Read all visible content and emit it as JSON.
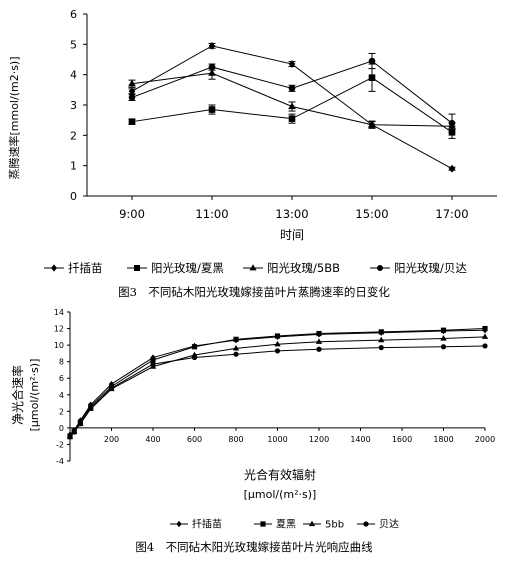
{
  "figure3": {
    "caption": "图3　不同砧木阳光玫瑰嫁接苗叶片蒸腾速率的日变化"
  },
  "figure4": {
    "caption": "图4　不同砧木阳光玫瑰嫁接苗叶片光响应曲线"
  },
  "chart_data": [
    {
      "type": "line",
      "xlabel": "时间",
      "ylabel": "蒸腾速率[mmol/(m2·s)]",
      "categories": [
        "9:00",
        "11:00",
        "13:00",
        "15:00",
        "17:00"
      ],
      "yticks": [
        0,
        1,
        2,
        3,
        4,
        5,
        6
      ],
      "ylim": [
        0,
        6
      ],
      "legend_placement": "bottom",
      "series": [
        {
          "name": "扦插苗",
          "marker": "diamond",
          "values": [
            3.45,
            4.95,
            4.35,
            2.35,
            0.9
          ],
          "errors": [
            0.08,
            0.08,
            0.08,
            0.12,
            0.05
          ]
        },
        {
          "name": "阳光玫瑰/夏黑",
          "marker": "square",
          "values": [
            2.45,
            2.85,
            2.55,
            3.9,
            2.1
          ],
          "errors": [
            0.08,
            0.15,
            0.15,
            0.45,
            0.2
          ]
        },
        {
          "name": "阳光玫瑰/5BB",
          "marker": "triangle",
          "values": [
            3.7,
            4.05,
            2.95,
            2.35,
            2.3
          ],
          "errors": [
            0.12,
            0.2,
            0.15,
            0.1,
            0.12
          ]
        },
        {
          "name": "阳光玫瑰/贝达",
          "marker": "circle",
          "values": [
            3.25,
            4.25,
            3.55,
            4.45,
            2.4
          ],
          "errors": [
            0.1,
            0.1,
            0.1,
            0.25,
            0.3
          ]
        }
      ]
    },
    {
      "type": "line",
      "xlabel": "光合有效辐射",
      "xunit": "[μmol/(m²·s)]",
      "ylabel": "净光合速率",
      "yunit": "[μmol/(m²·s)]",
      "xticks": [
        0,
        200,
        400,
        600,
        800,
        1000,
        1200,
        1400,
        1600,
        1800,
        2000
      ],
      "yticks": [
        -4,
        -2,
        0,
        2,
        4,
        6,
        8,
        10,
        12,
        14
      ],
      "xlim": [
        0,
        2000
      ],
      "ylim": [
        -4,
        14
      ],
      "legend_placement": "bottom",
      "x": [
        0,
        20,
        50,
        100,
        200,
        400,
        600,
        800,
        1000,
        1200,
        1500,
        1800,
        2000
      ],
      "series": [
        {
          "name": "扦插苗",
          "marker": "diamond",
          "values": [
            -0.8,
            -0.3,
            0.9,
            2.8,
            5.3,
            8.5,
            9.9,
            10.6,
            11.0,
            11.3,
            11.5,
            11.7,
            11.8
          ]
        },
        {
          "name": "夏黑",
          "marker": "square",
          "values": [
            -1.0,
            -0.4,
            0.7,
            2.6,
            5.0,
            8.2,
            9.8,
            10.7,
            11.1,
            11.4,
            11.6,
            11.8,
            12.0
          ]
        },
        {
          "name": "5bb",
          "marker": "triangle",
          "values": [
            -1.1,
            -0.5,
            0.5,
            2.3,
            4.7,
            7.4,
            8.8,
            9.6,
            10.1,
            10.4,
            10.6,
            10.8,
            11.0
          ]
        },
        {
          "name": "贝达",
          "marker": "circle",
          "values": [
            -1.1,
            -0.5,
            0.5,
            2.4,
            4.8,
            7.7,
            8.5,
            8.9,
            9.3,
            9.5,
            9.7,
            9.8,
            9.9
          ]
        }
      ]
    }
  ]
}
